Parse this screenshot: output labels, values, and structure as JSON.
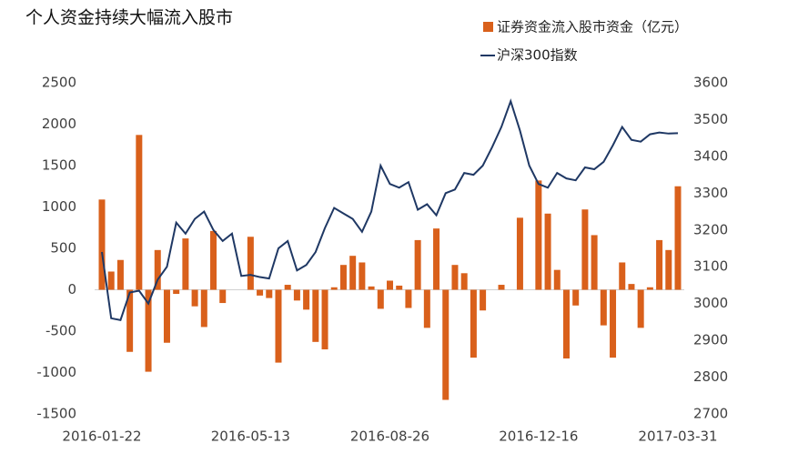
{
  "chart_data": {
    "type": "bar-line",
    "title": "个人资金持续大幅流入股市",
    "categories": [
      "2016-01-22",
      null,
      null,
      null,
      null,
      null,
      null,
      null,
      null,
      null,
      null,
      null,
      null,
      null,
      null,
      null,
      "2016-05-13",
      null,
      null,
      null,
      null,
      null,
      null,
      null,
      null,
      null,
      null,
      null,
      null,
      null,
      null,
      "2016-08-26",
      null,
      null,
      null,
      null,
      null,
      null,
      null,
      null,
      null,
      null,
      null,
      null,
      null,
      null,
      null,
      "2016-12-16",
      null,
      null,
      null,
      null,
      null,
      null,
      null,
      null,
      null,
      null,
      null,
      null,
      null,
      null,
      "2017-03-31"
    ],
    "series": [
      {
        "name": "证券资金流入股市资金（亿元）",
        "color": "#d9601b",
        "type": "bar",
        "axis": "y",
        "values": [
          1090,
          220,
          360,
          -750,
          1870,
          -990,
          480,
          -640,
          -50,
          620,
          -200,
          -450,
          710,
          -160,
          0,
          0,
          640,
          -70,
          -100,
          -880,
          60,
          -130,
          -240,
          -630,
          -720,
          30,
          300,
          410,
          330,
          40,
          -230,
          110,
          50,
          -220,
          600,
          -460,
          740,
          -1330,
          300,
          200,
          -820,
          -250,
          0,
          60,
          0,
          870,
          0,
          1320,
          920,
          240,
          -830,
          -190,
          970,
          660,
          -430,
          -820,
          330,
          70,
          -460,
          30,
          600,
          480,
          1250
        ]
      },
      {
        "name": "沪深300指数",
        "color": "#1f3864",
        "type": "line",
        "axis": "y2",
        "values": [
          3140,
          2960,
          2955,
          3030,
          3035,
          3000,
          3065,
          3100,
          3220,
          3190,
          3230,
          3250,
          3200,
          3170,
          3190,
          3075,
          3078,
          3072,
          3068,
          3150,
          3170,
          3090,
          3105,
          3140,
          3205,
          3260,
          3245,
          3230,
          3195,
          3250,
          3375,
          3325,
          3315,
          3330,
          3255,
          3270,
          3240,
          3300,
          3310,
          3355,
          3350,
          3375,
          3425,
          3480,
          3550,
          3470,
          3375,
          3325,
          3315,
          3355,
          3340,
          3335,
          3370,
          3365,
          3385,
          3430,
          3480,
          3445,
          3440,
          3460,
          3465,
          3462,
          3463
        ]
      }
    ],
    "ylim": [
      -1500,
      2500
    ],
    "yticks": [
      -1500,
      -1000,
      -500,
      0,
      500,
      1000,
      1500,
      2000,
      2500
    ],
    "y2lim": [
      2700,
      3600
    ],
    "y2ticks": [
      2700,
      2800,
      2900,
      3000,
      3100,
      3200,
      3300,
      3400,
      3500,
      3600
    ]
  }
}
